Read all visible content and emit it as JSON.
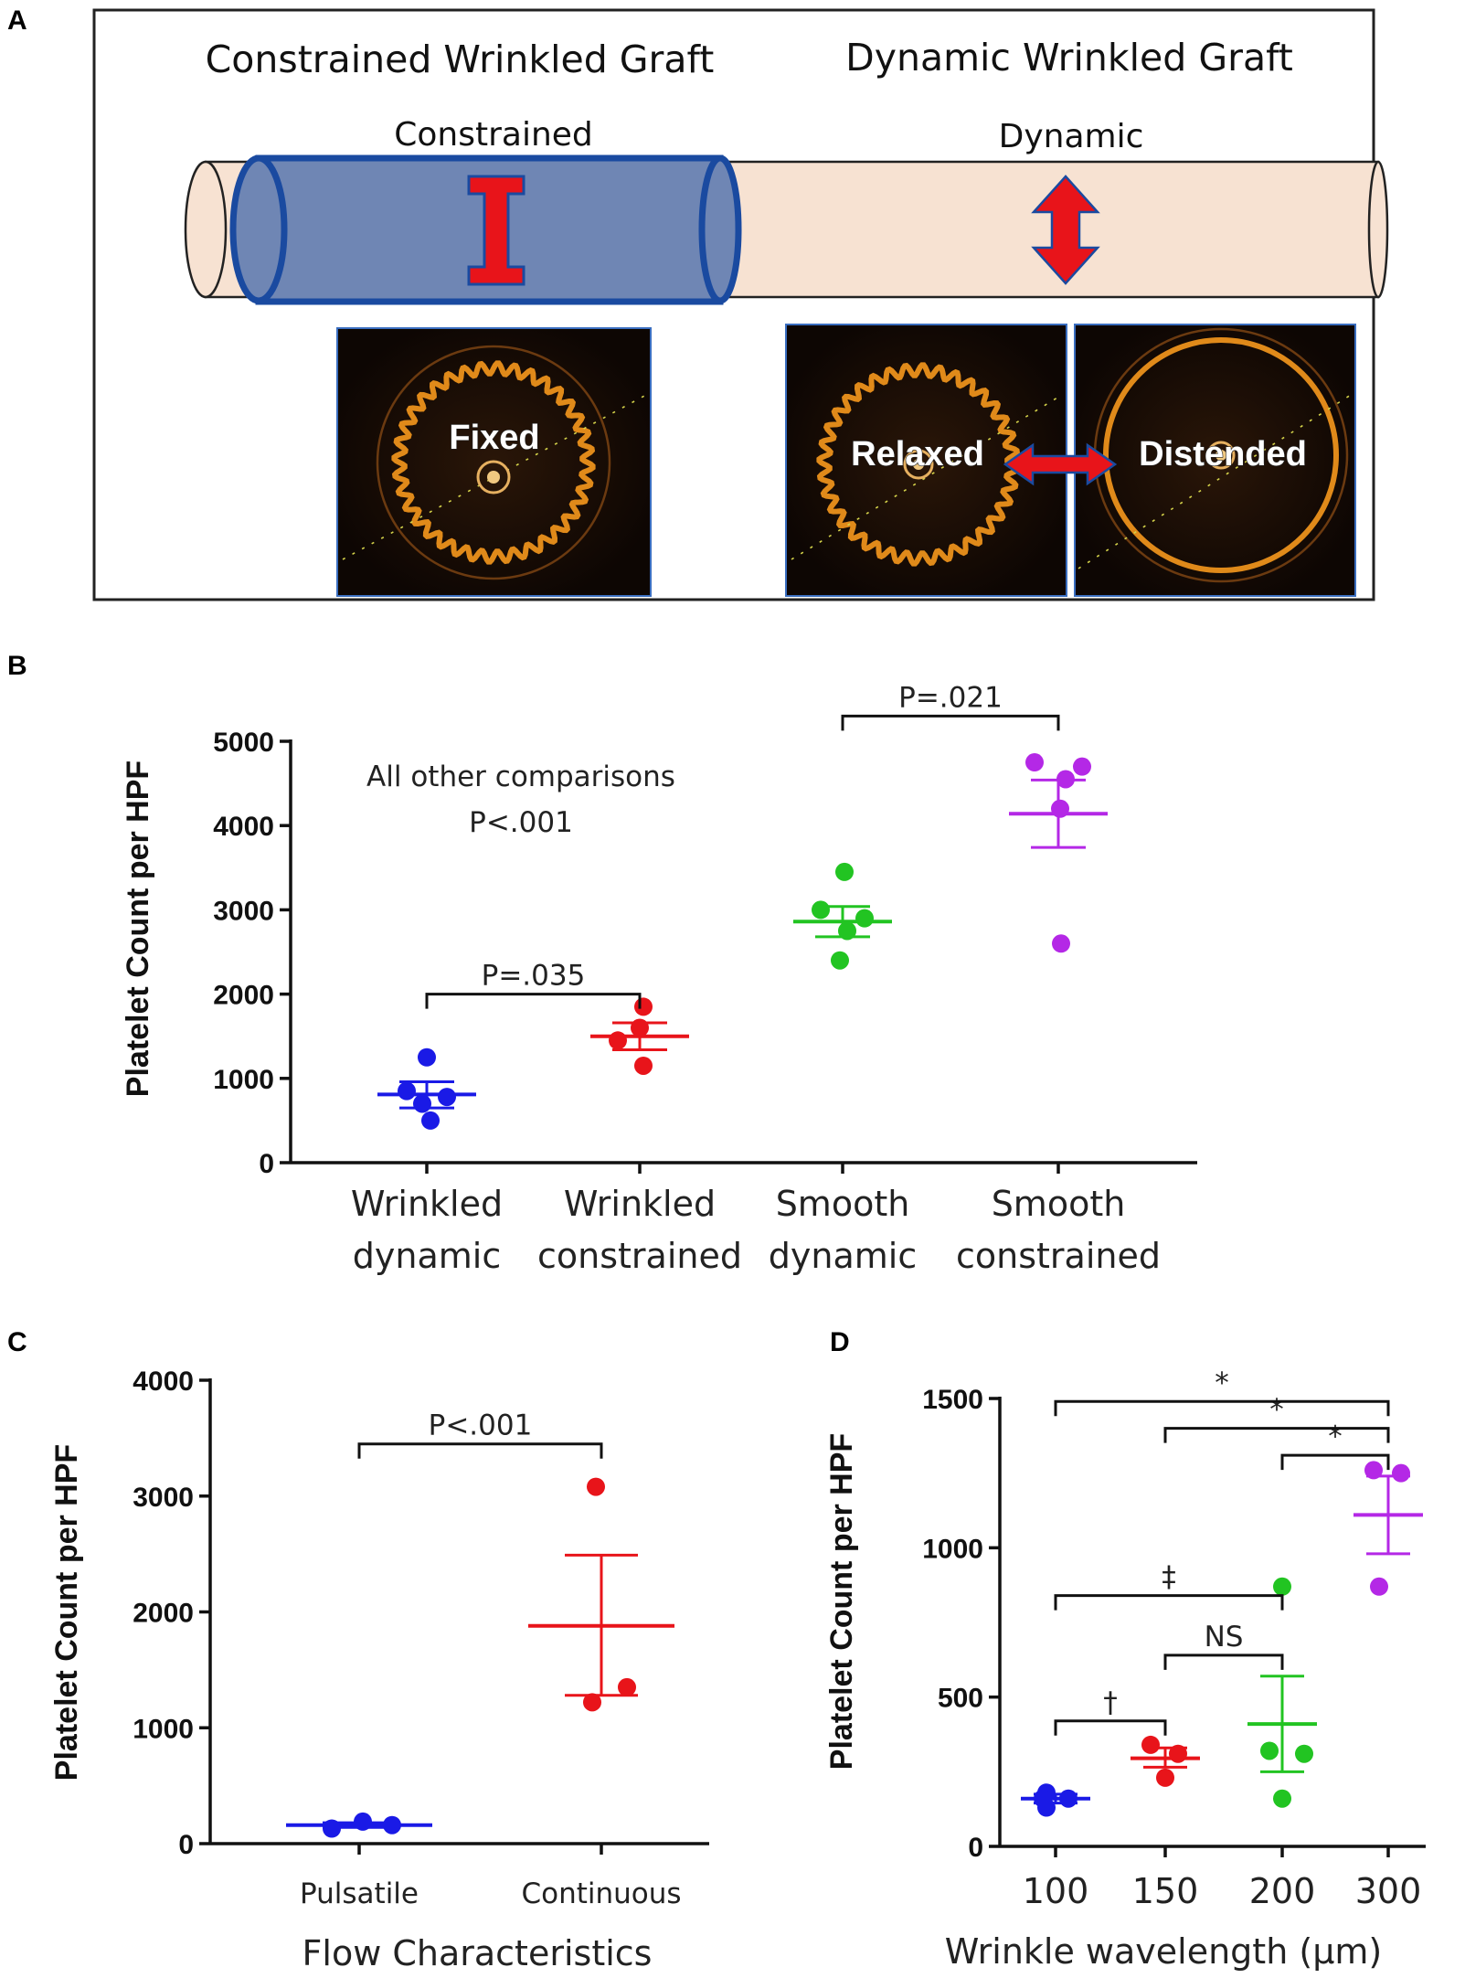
{
  "panel_a": {
    "letter": "A",
    "title_left": "Constrained Wrinkled Graft",
    "title_right": "Dynamic Wrinkled Graft",
    "label_constrained": "Constrained",
    "label_dynamic": "Dynamic",
    "img_fixed": "Fixed",
    "img_relaxed": "Relaxed",
    "img_distended": "Distended",
    "colors": {
      "sleeve": "#6f86b4",
      "tube": "#f7e2d2",
      "arrow": "#e8141a"
    }
  },
  "chart_data": [
    {
      "panel": "B",
      "type": "scatter",
      "ylabel": "Platelet Count per HPF",
      "ylim": [
        0,
        5000
      ],
      "yticks": [
        0,
        1000,
        2000,
        3000,
        4000,
        5000
      ],
      "tick_labels": [
        "0",
        "1000",
        "2000",
        "3000",
        "4000",
        "5000"
      ],
      "categories": [
        {
          "line1": "Wrinkled",
          "line2": "dynamic"
        },
        {
          "line1": "Wrinkled",
          "line2": "constrained"
        },
        {
          "line1": "Smooth",
          "line2": "dynamic"
        },
        {
          "line1": "Smooth",
          "line2": "constrained"
        }
      ],
      "series": [
        {
          "color": "#1a1ae6",
          "points": [
            1250,
            850,
            780,
            700,
            500
          ],
          "mean": 810,
          "sem": [
            650,
            960
          ]
        },
        {
          "color": "#e8141a",
          "points": [
            1850,
            1600,
            1450,
            1150
          ],
          "mean": 1500,
          "sem": [
            1340,
            1660
          ]
        },
        {
          "color": "#22c422",
          "points": [
            3450,
            3000,
            2900,
            2750,
            2400
          ],
          "mean": 2860,
          "sem": [
            2680,
            3040
          ]
        },
        {
          "color": "#b428e6",
          "points": [
            4750,
            4700,
            4550,
            4200,
            2600
          ],
          "mean": 4140,
          "sem": [
            3740,
            4540
          ]
        }
      ],
      "brackets": [
        {
          "from": 0,
          "to": 1,
          "y": 2000,
          "label": "P=.035"
        },
        {
          "from": 2,
          "to": 3,
          "y": 5300,
          "label": "P=.021"
        }
      ],
      "annotation": [
        "All other comparisons",
        "P<.001"
      ]
    },
    {
      "panel": "C",
      "type": "scatter",
      "ylabel": "Platelet Count per HPF",
      "xlabel": "Flow Characteristics",
      "ylim": [
        0,
        4000
      ],
      "yticks": [
        0,
        1000,
        2000,
        3000,
        4000
      ],
      "tick_labels": [
        "0",
        "1000",
        "2000",
        "3000",
        "4000"
      ],
      "categories": [
        "Pulsatile",
        "Continuous"
      ],
      "series": [
        {
          "color": "#1a1ae6",
          "points": [
            130,
            190,
            160
          ],
          "mean": 160,
          "sem": [
            140,
            180
          ]
        },
        {
          "color": "#e8141a",
          "points": [
            3080,
            1350,
            1220
          ],
          "mean": 1880,
          "sem": [
            1280,
            2490
          ]
        }
      ],
      "brackets": [
        {
          "from": 0,
          "to": 1,
          "y": 3450,
          "label": "P<.001"
        }
      ]
    },
    {
      "panel": "D",
      "type": "scatter",
      "ylabel": "Platelet Count per HPF",
      "xlabel": "Wrinkle wavelength (μm)",
      "ylim": [
        0,
        1500
      ],
      "yticks": [
        0,
        500,
        1000,
        1500
      ],
      "tick_labels": [
        "0",
        "500",
        "1000",
        "1500"
      ],
      "categories": [
        "100",
        "150",
        "200",
        "300"
      ],
      "series": [
        {
          "color": "#1a1ae6",
          "points": [
            180,
            160,
            160,
            130
          ],
          "mean": 160,
          "sem": [
            145,
            175
          ]
        },
        {
          "color": "#e8141a",
          "points": [
            340,
            310,
            230
          ],
          "mean": 295,
          "sem": [
            265,
            330
          ]
        },
        {
          "color": "#22c422",
          "points": [
            870,
            320,
            310,
            160
          ],
          "mean": 410,
          "sem": [
            250,
            570
          ]
        },
        {
          "color": "#b428e6",
          "points": [
            1260,
            1250,
            870
          ],
          "mean": 1110,
          "sem": [
            980,
            1240
          ]
        }
      ],
      "brackets": [
        {
          "from": 0,
          "to": 1,
          "y": 420,
          "label": "†"
        },
        {
          "from": 1,
          "to": 2,
          "y": 640,
          "label": "NS"
        },
        {
          "from": 0,
          "to": 2,
          "y": 840,
          "label": "‡"
        },
        {
          "from": 2,
          "to": 3,
          "y": 1310,
          "label": "*"
        },
        {
          "from": 1,
          "to": 3,
          "y": 1400,
          "label": "*"
        },
        {
          "from": 0,
          "to": 3,
          "y": 1490,
          "label": "*"
        }
      ]
    }
  ]
}
